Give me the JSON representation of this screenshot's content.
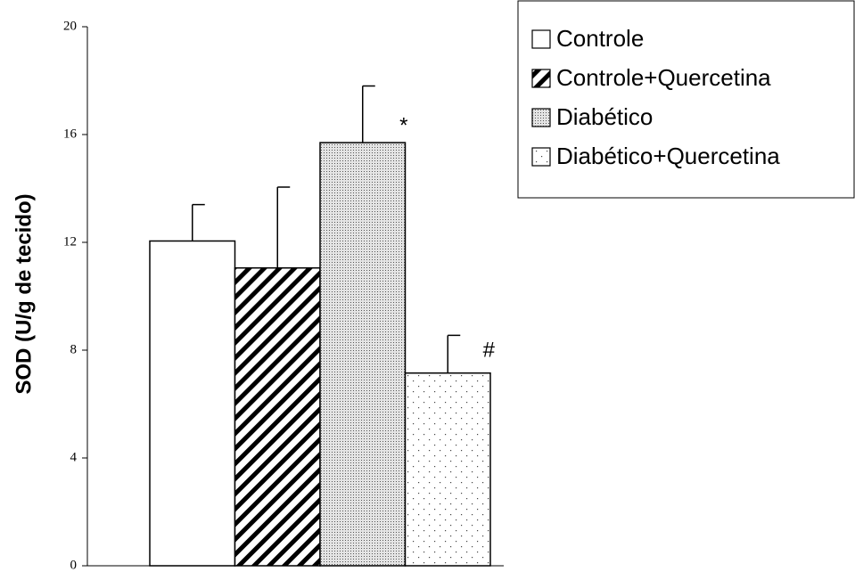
{
  "chart_data": {
    "type": "bar",
    "y_label": "SOD (U/g de tecido)",
    "ylim": [
      0,
      20
    ],
    "yticks": [
      0,
      4,
      8,
      12,
      16,
      20
    ],
    "series": [
      {
        "name": "Controle",
        "color": "#ffffff",
        "hatch": "none",
        "values": [
          12.05
        ],
        "errors": [
          1.35
        ]
      },
      {
        "name": "Controle+Quercetina",
        "color": "#ffffff",
        "hatch": "diagonal",
        "values": [
          11.05
        ],
        "errors": [
          3.0
        ]
      },
      {
        "name": "Diabético",
        "color": "#d0d0d0",
        "hatch": "dense-dots",
        "values": [
          15.7
        ],
        "errors": [
          2.1
        ]
      },
      {
        "name": "Diabético+Quercetina",
        "color": "#ffffff",
        "hatch": "sparse-dots",
        "values": [
          7.15
        ],
        "errors": [
          1.4
        ]
      }
    ],
    "annotations": [
      {
        "text": "*",
        "series": 2
      },
      {
        "text": "#",
        "series": 3
      }
    ],
    "legend": "top-right"
  }
}
